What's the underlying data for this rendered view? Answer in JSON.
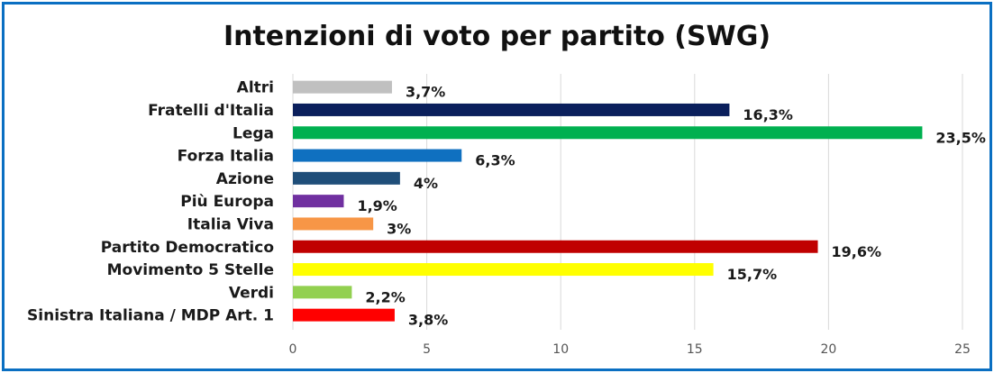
{
  "chart_data": {
    "type": "bar",
    "orientation": "horizontal",
    "title": "Intenzioni di voto per partito (SWG)",
    "categories": [
      "Altri",
      "Fratelli d'Italia",
      "Lega",
      "Forza Italia",
      "Azione",
      "Più Europa",
      "Italia Viva",
      "Partito Democratico",
      "Movimento 5 Stelle",
      "Verdi",
      "Sinistra Italiana / MDP Art. 1"
    ],
    "values": [
      3.7,
      16.3,
      23.5,
      6.3,
      4,
      1.9,
      3,
      19.6,
      15.7,
      2.2,
      3.8
    ],
    "data_labels": [
      "3,7%",
      "16,3%",
      "23,5%",
      "6,3%",
      "4%",
      "1,9%",
      "3%",
      "19,6%",
      "15,7%",
      "2,2%",
      "3,8%"
    ],
    "colors": [
      "#c0c0c0",
      "#0a1f5c",
      "#00b050",
      "#0f70c0",
      "#1f4e79",
      "#7030a0",
      "#f79646",
      "#c00000",
      "#ffff00",
      "#92d050",
      "#ff0000"
    ],
    "xlim": [
      0,
      25
    ],
    "xticks": [
      "0",
      "5",
      "10",
      "15",
      "20",
      "25"
    ],
    "grid": true,
    "xlabel": "",
    "ylabel": ""
  },
  "frame_color": "#0a6fc2"
}
